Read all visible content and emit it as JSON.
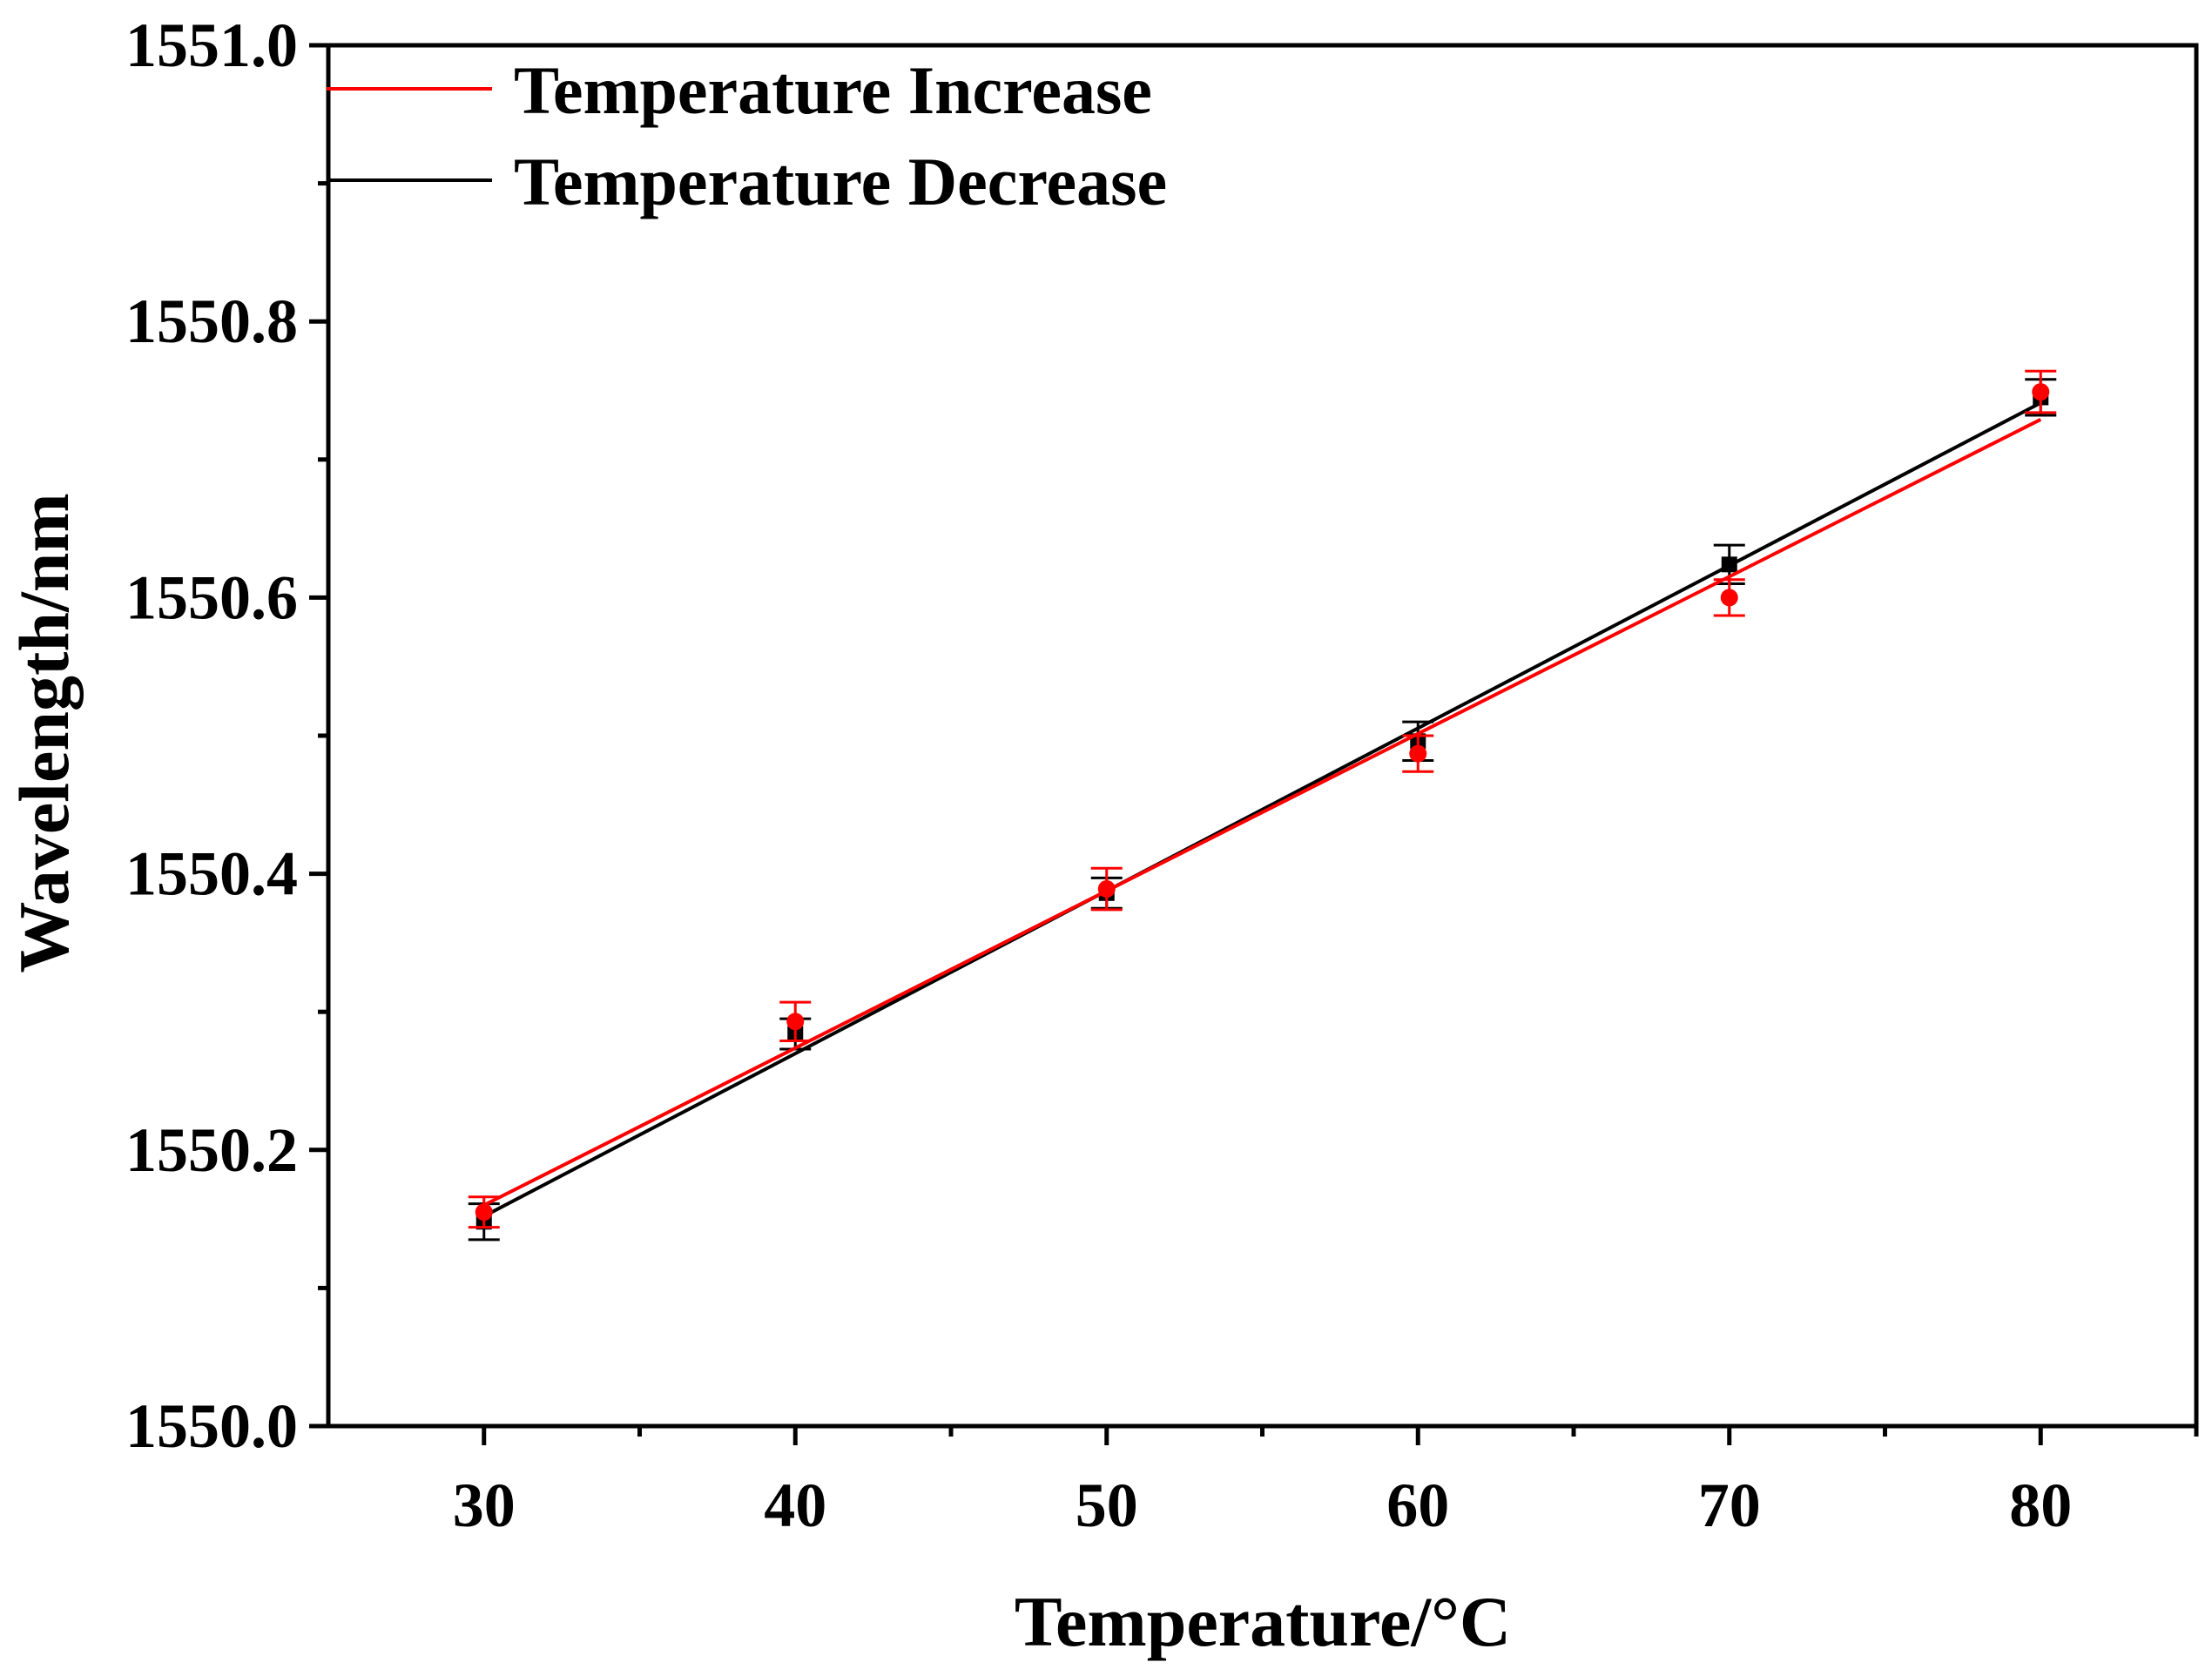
{
  "chart_data": {
    "type": "scatter",
    "title": "",
    "xlabel": "Temperature/°C",
    "ylabel": "Wavelength/nm",
    "xlim": [
      25,
      85
    ],
    "ylim": [
      1550.0,
      1551.0
    ],
    "x_ticks": [
      30,
      40,
      50,
      60,
      70,
      80
    ],
    "x_tick_labels": [
      "30",
      "40",
      "50",
      "60",
      "70",
      "80"
    ],
    "y_ticks": [
      1550.0,
      1550.2,
      1550.4,
      1550.6,
      1550.8,
      1551.0
    ],
    "y_tick_labels": [
      "1550.0",
      "1550.2",
      "1550.4",
      "1550.6",
      "1550.8",
      "1551.0"
    ],
    "x_minor_ticks": [
      35,
      45,
      55,
      65,
      75,
      85
    ],
    "y_minor_ticks": [
      1550.1,
      1550.3,
      1550.5,
      1550.7,
      1550.9
    ],
    "legend_position": "top-left",
    "grid": false,
    "series": [
      {
        "name": "Temperature Increase",
        "color": "#ff0000",
        "marker": "circle",
        "x": [
          30,
          40,
          50,
          60,
          70,
          80
        ],
        "values": [
          1550.155,
          1550.293,
          1550.389,
          1550.487,
          1550.6,
          1550.749
        ],
        "errors": [
          0.011,
          0.014,
          0.015,
          0.013,
          0.013,
          0.015
        ],
        "fit": {
          "x": [
            30,
            80
          ],
          "y": [
            1550.16,
            1550.729
          ]
        }
      },
      {
        "name": "Temperature Decrease",
        "color": "#000000",
        "marker": "square",
        "x": [
          30,
          40,
          50,
          60,
          70,
          80
        ],
        "values": [
          1550.148,
          1550.284,
          1550.386,
          1550.496,
          1550.624,
          1550.745
        ],
        "errors": [
          0.013,
          0.011,
          0.011,
          0.014,
          0.014,
          0.013
        ],
        "fit": {
          "x": [
            30,
            80
          ],
          "y": [
            1550.152,
            1550.741
          ]
        }
      }
    ]
  }
}
